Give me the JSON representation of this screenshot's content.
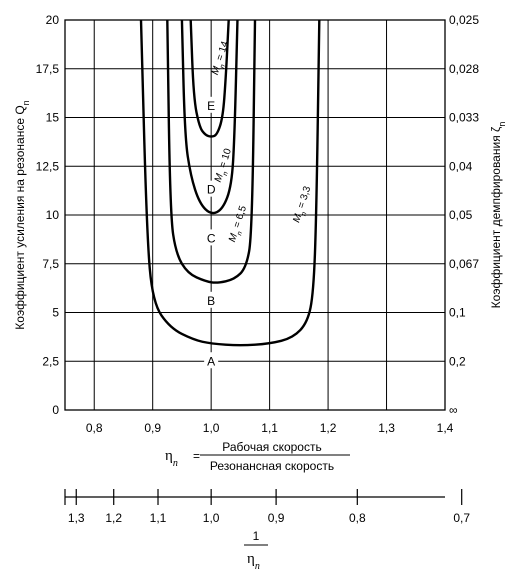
{
  "chart_data": {
    "type": "line",
    "x": {
      "ticks": [
        "0,8",
        "0,9",
        "1,0",
        "1,1",
        "1,2",
        "1,3",
        "1,4"
      ],
      "tick_values": [
        0.8,
        0.9,
        1.0,
        1.1,
        1.2,
        1.3,
        1.4
      ],
      "range": [
        0.75,
        1.4
      ],
      "label_symbol": "η",
      "label_sub": "n",
      "label_eq": "=",
      "label_numerator": "Рабочая скорость",
      "label_denominator": "Резонансная скорость"
    },
    "y_left": {
      "ticks": [
        "0",
        "2,5",
        "5",
        "7,5",
        "10",
        "12,5",
        "15",
        "17,5",
        "20"
      ],
      "tick_values": [
        0,
        2.5,
        5,
        7.5,
        10,
        12.5,
        15,
        17.5,
        20
      ],
      "range": [
        0,
        20
      ],
      "label": "Коэффициент усиления на резонансе Q",
      "label_sub": "n"
    },
    "y_right": {
      "ticks": [
        "∞",
        "0,2",
        "0,1",
        "0,067",
        "0,05",
        "0,04",
        "0,033",
        "0,028",
        "0,025"
      ],
      "label": "Коэффициент демпфирования ζ",
      "label_sub": "n"
    },
    "lower_axis": {
      "ticks": [
        "1,3",
        "1,2",
        "1,1",
        "1,0",
        "0,9",
        "0,8",
        "0,7"
      ],
      "tick_values": [
        1.3,
        1.2,
        1.1,
        1.0,
        0.9,
        0.8,
        0.7
      ],
      "label_num": "1",
      "label_sym": "η",
      "label_sub": "n"
    },
    "series": [
      {
        "name": "M",
        "sub": "n",
        "value": " = 3,3",
        "x_left": 0.895,
        "x_right": 1.18,
        "x_min": 1.02,
        "q_min": 3.3,
        "points": [
          [
            0.88,
            20
          ],
          [
            0.89,
            9
          ],
          [
            0.9,
            5.5
          ],
          [
            0.93,
            4.2
          ],
          [
            0.97,
            3.6
          ],
          [
            1.0,
            3.4
          ],
          [
            1.05,
            3.3
          ],
          [
            1.1,
            3.4
          ],
          [
            1.14,
            3.7
          ],
          [
            1.165,
            4.5
          ],
          [
            1.175,
            6
          ],
          [
            1.18,
            10
          ],
          [
            1.185,
            20
          ]
        ]
      },
      {
        "name": "M",
        "sub": "n",
        "value": " = 6,5",
        "points": [
          [
            0.925,
            20
          ],
          [
            0.93,
            10
          ],
          [
            0.94,
            8
          ],
          [
            0.96,
            7
          ],
          [
            0.99,
            6.6
          ],
          [
            1.01,
            6.5
          ],
          [
            1.04,
            6.7
          ],
          [
            1.06,
            7.3
          ],
          [
            1.07,
            9
          ],
          [
            1.075,
            20
          ]
        ]
      },
      {
        "name": "M",
        "sub": "n",
        "value": " = 10",
        "points": [
          [
            0.95,
            20
          ],
          [
            0.955,
            14
          ],
          [
            0.965,
            12
          ],
          [
            0.98,
            10.6
          ],
          [
            1.0,
            10
          ],
          [
            1.02,
            10.3
          ],
          [
            1.035,
            11.5
          ],
          [
            1.04,
            14
          ],
          [
            1.045,
            20
          ]
        ]
      },
      {
        "name": "M",
        "sub": "n",
        "value": " = 14",
        "points": [
          [
            0.965,
            20
          ],
          [
            0.97,
            16
          ],
          [
            0.98,
            14.5
          ],
          [
            0.99,
            14.1
          ],
          [
            1.0,
            14
          ],
          [
            1.01,
            14.1
          ],
          [
            1.02,
            15
          ],
          [
            1.025,
            17
          ],
          [
            1.03,
            20
          ]
        ]
      }
    ],
    "points": [
      {
        "label": "A",
        "x": 1.0,
        "y": 2.5
      },
      {
        "label": "B",
        "x": 1.0,
        "y": 5.6
      },
      {
        "label": "C",
        "x": 1.0,
        "y": 8.8
      },
      {
        "label": "D",
        "x": 1.0,
        "y": 11.3
      },
      {
        "label": "E",
        "x": 1.0,
        "y": 15.6
      }
    ],
    "grid": true
  }
}
